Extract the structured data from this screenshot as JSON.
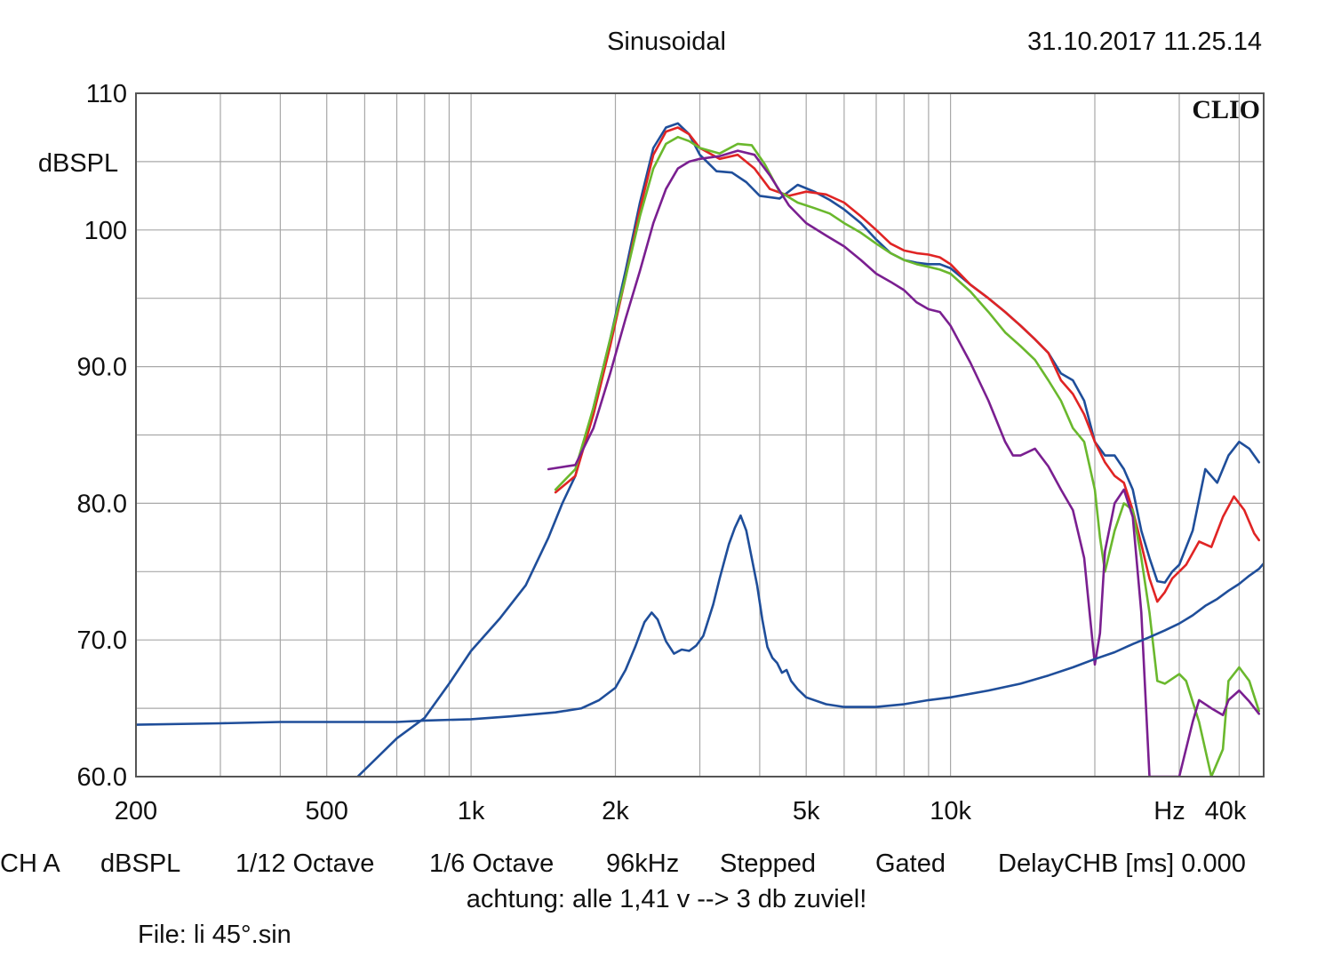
{
  "header": {
    "title": "Sinusoidal",
    "timestamp": "31.10.2017 11.25.14",
    "brand": "CLIO"
  },
  "footer": {
    "settings": [
      "CH A",
      "dBSPL",
      "1/12 Octave",
      "1/6 Octave",
      "96kHz",
      "Stepped",
      "Gated",
      "DelayCHB [ms] 0.000"
    ],
    "note": "achtung: alle 1,41 v --> 3 db zuviel!",
    "file": "File: li 45°.sin"
  },
  "colors": {
    "grid": "#a8a8a8",
    "frame": "#555555",
    "blue": "#1f4e9a",
    "red": "#e02424",
    "green": "#6ab82d",
    "purple": "#7a1f90"
  },
  "chart_data": {
    "type": "line",
    "x_scale": "log",
    "xlim": [
      200,
      45000
    ],
    "ylim": [
      60,
      110
    ],
    "ylabel": "dBSPL",
    "xunit_label": "Hz",
    "y_ticks": [
      {
        "v": 110,
        "label": "110"
      },
      {
        "v": 100,
        "label": "100"
      },
      {
        "v": 90,
        "label": "90.0"
      },
      {
        "v": 80,
        "label": "80.0"
      },
      {
        "v": 70,
        "label": "70.0"
      },
      {
        "v": 60,
        "label": "60.0"
      }
    ],
    "y_grid_step": 5,
    "x_tick_labels": [
      {
        "v": 200,
        "label": "200"
      },
      {
        "v": 500,
        "label": "500"
      },
      {
        "v": 1000,
        "label": "1k"
      },
      {
        "v": 2000,
        "label": "2k"
      },
      {
        "v": 5000,
        "label": "5k"
      },
      {
        "v": 10000,
        "label": "10k"
      },
      {
        "v": 40000,
        "label": "40k"
      }
    ],
    "x_grid": [
      200,
      300,
      400,
      500,
      600,
      700,
      800,
      900,
      1000,
      2000,
      3000,
      4000,
      5000,
      6000,
      7000,
      8000,
      9000,
      10000,
      20000,
      30000,
      40000
    ],
    "series": [
      {
        "color": "blue",
        "points": [
          [
            580,
            60
          ],
          [
            700,
            62.8
          ],
          [
            800,
            64.3
          ],
          [
            900,
            66.8
          ],
          [
            1000,
            69.2
          ],
          [
            1150,
            71.6
          ],
          [
            1300,
            74
          ],
          [
            1450,
            77.5
          ],
          [
            1550,
            80
          ],
          [
            1650,
            82
          ],
          [
            1800,
            87
          ],
          [
            1950,
            92
          ],
          [
            2100,
            97
          ],
          [
            2250,
            102
          ],
          [
            2400,
            106
          ],
          [
            2550,
            107.5
          ],
          [
            2700,
            107.8
          ],
          [
            2850,
            107
          ],
          [
            3000,
            105.5
          ],
          [
            3250,
            104.3
          ],
          [
            3500,
            104.2
          ],
          [
            3750,
            103.5
          ],
          [
            4000,
            102.5
          ],
          [
            4400,
            102.3
          ],
          [
            4800,
            103.3
          ],
          [
            5200,
            102.8
          ],
          [
            5600,
            102.2
          ],
          [
            6000,
            101.5
          ],
          [
            6500,
            100.5
          ],
          [
            7000,
            99.3
          ],
          [
            7500,
            98.3
          ],
          [
            8000,
            97.8
          ],
          [
            8500,
            97.6
          ],
          [
            9000,
            97.5
          ],
          [
            9500,
            97.5
          ],
          [
            10000,
            97.2
          ],
          [
            11000,
            96
          ],
          [
            12000,
            95
          ],
          [
            13000,
            94
          ],
          [
            14000,
            93
          ],
          [
            15000,
            92
          ],
          [
            16000,
            91
          ],
          [
            17000,
            89.5
          ],
          [
            18000,
            89
          ],
          [
            19000,
            87.5
          ],
          [
            20000,
            84.5
          ],
          [
            21000,
            83.5
          ],
          [
            22000,
            83.5
          ],
          [
            23000,
            82.5
          ],
          [
            24000,
            81
          ],
          [
            25000,
            78
          ],
          [
            26000,
            76
          ],
          [
            27000,
            74.3
          ],
          [
            28000,
            74.2
          ],
          [
            29000,
            75
          ],
          [
            30000,
            75.5
          ],
          [
            32000,
            78
          ],
          [
            34000,
            82.5
          ],
          [
            36000,
            81.5
          ],
          [
            38000,
            83.5
          ],
          [
            40000,
            84.5
          ],
          [
            42000,
            84
          ],
          [
            44000,
            83
          ]
        ]
      },
      {
        "color": "red",
        "points": [
          [
            1500,
            80.8
          ],
          [
            1650,
            82
          ],
          [
            1800,
            86.5
          ],
          [
            1950,
            91.5
          ],
          [
            2100,
            96.5
          ],
          [
            2250,
            101.5
          ],
          [
            2400,
            105.5
          ],
          [
            2550,
            107.2
          ],
          [
            2700,
            107.5
          ],
          [
            2850,
            107
          ],
          [
            3000,
            106
          ],
          [
            3300,
            105.2
          ],
          [
            3600,
            105.5
          ],
          [
            3900,
            104.5
          ],
          [
            4200,
            103
          ],
          [
            4600,
            102.5
          ],
          [
            5000,
            102.8
          ],
          [
            5500,
            102.6
          ],
          [
            6000,
            102
          ],
          [
            6500,
            101
          ],
          [
            7000,
            100
          ],
          [
            7500,
            99
          ],
          [
            8000,
            98.5
          ],
          [
            8500,
            98.3
          ],
          [
            9000,
            98.2
          ],
          [
            9500,
            98
          ],
          [
            10000,
            97.5
          ],
          [
            11000,
            96
          ],
          [
            12000,
            95
          ],
          [
            13000,
            94
          ],
          [
            14000,
            93
          ],
          [
            15000,
            92
          ],
          [
            16000,
            91
          ],
          [
            17000,
            89
          ],
          [
            18000,
            88
          ],
          [
            19000,
            86.5
          ],
          [
            20000,
            84.5
          ],
          [
            21000,
            83
          ],
          [
            22000,
            82
          ],
          [
            23000,
            81.5
          ],
          [
            24000,
            79.5
          ],
          [
            25000,
            77
          ],
          [
            26000,
            74.5
          ],
          [
            27000,
            72.8
          ],
          [
            28000,
            73.5
          ],
          [
            29000,
            74.5
          ],
          [
            31000,
            75.5
          ],
          [
            33000,
            77.2
          ],
          [
            35000,
            76.8
          ],
          [
            37000,
            79
          ],
          [
            39000,
            80.5
          ],
          [
            41000,
            79.5
          ],
          [
            43000,
            77.8
          ],
          [
            44000,
            77.3
          ]
        ]
      },
      {
        "color": "green",
        "points": [
          [
            1500,
            81
          ],
          [
            1650,
            82.5
          ],
          [
            1800,
            87
          ],
          [
            1950,
            92
          ],
          [
            2100,
            96.5
          ],
          [
            2250,
            101
          ],
          [
            2400,
            104.5
          ],
          [
            2550,
            106.3
          ],
          [
            2700,
            106.8
          ],
          [
            2850,
            106.5
          ],
          [
            3000,
            106
          ],
          [
            3300,
            105.6
          ],
          [
            3600,
            106.3
          ],
          [
            3850,
            106.2
          ],
          [
            4100,
            104.8
          ],
          [
            4400,
            102.8
          ],
          [
            4800,
            102
          ],
          [
            5200,
            101.6
          ],
          [
            5600,
            101.2
          ],
          [
            6000,
            100.5
          ],
          [
            6500,
            99.8
          ],
          [
            7000,
            99
          ],
          [
            7500,
            98.3
          ],
          [
            8000,
            97.8
          ],
          [
            8500,
            97.5
          ],
          [
            9000,
            97.3
          ],
          [
            9500,
            97.1
          ],
          [
            10000,
            96.8
          ],
          [
            11000,
            95.5
          ],
          [
            12000,
            94
          ],
          [
            13000,
            92.5
          ],
          [
            14000,
            91.5
          ],
          [
            15000,
            90.5
          ],
          [
            16000,
            89
          ],
          [
            17000,
            87.5
          ],
          [
            18000,
            85.5
          ],
          [
            19000,
            84.5
          ],
          [
            20000,
            81
          ],
          [
            20500,
            77.5
          ],
          [
            21000,
            75
          ],
          [
            22000,
            78
          ],
          [
            23000,
            80
          ],
          [
            24000,
            79.5
          ],
          [
            25000,
            76
          ],
          [
            26000,
            72
          ],
          [
            27000,
            67
          ],
          [
            28000,
            66.8
          ],
          [
            30000,
            67.5
          ],
          [
            31000,
            67
          ],
          [
            33000,
            64
          ],
          [
            35000,
            60
          ],
          [
            37000,
            62
          ],
          [
            38000,
            67
          ],
          [
            40000,
            68
          ],
          [
            42000,
            67
          ],
          [
            44000,
            64.8
          ]
        ]
      },
      {
        "color": "purple",
        "points": [
          [
            1450,
            82.5
          ],
          [
            1650,
            82.8
          ],
          [
            1800,
            85.5
          ],
          [
            1950,
            89.5
          ],
          [
            2100,
            93.5
          ],
          [
            2250,
            97
          ],
          [
            2400,
            100.5
          ],
          [
            2550,
            103
          ],
          [
            2700,
            104.5
          ],
          [
            2850,
            105
          ],
          [
            3000,
            105.2
          ],
          [
            3300,
            105.4
          ],
          [
            3600,
            105.8
          ],
          [
            3900,
            105.5
          ],
          [
            4200,
            104
          ],
          [
            4600,
            101.8
          ],
          [
            5000,
            100.5
          ],
          [
            5500,
            99.6
          ],
          [
            6000,
            98.8
          ],
          [
            6500,
            97.8
          ],
          [
            7000,
            96.8
          ],
          [
            7500,
            96.2
          ],
          [
            8000,
            95.6
          ],
          [
            8500,
            94.7
          ],
          [
            9000,
            94.2
          ],
          [
            9500,
            94
          ],
          [
            10000,
            93
          ],
          [
            11000,
            90.3
          ],
          [
            12000,
            87.5
          ],
          [
            13000,
            84.5
          ],
          [
            13500,
            83.5
          ],
          [
            14000,
            83.5
          ],
          [
            15000,
            84
          ],
          [
            16000,
            82.7
          ],
          [
            17000,
            81
          ],
          [
            18000,
            79.5
          ],
          [
            19000,
            76
          ],
          [
            19500,
            72
          ],
          [
            20000,
            68.2
          ],
          [
            20500,
            70.5
          ],
          [
            21000,
            76.5
          ],
          [
            22000,
            80
          ],
          [
            23000,
            81
          ],
          [
            24000,
            79
          ],
          [
            25000,
            72
          ],
          [
            25500,
            66
          ],
          [
            26000,
            60
          ],
          [
            30000,
            60
          ],
          [
            32000,
            64
          ],
          [
            33000,
            65.6
          ],
          [
            35000,
            65
          ],
          [
            37000,
            64.5
          ],
          [
            38000,
            65.6
          ],
          [
            40000,
            66.3
          ],
          [
            42000,
            65.5
          ],
          [
            44000,
            64.6
          ]
        ]
      },
      {
        "color": "blue",
        "points": [
          [
            200,
            63.8
          ],
          [
            300,
            63.9
          ],
          [
            400,
            64
          ],
          [
            500,
            64
          ],
          [
            600,
            64
          ],
          [
            700,
            64
          ],
          [
            800,
            64.1
          ],
          [
            1000,
            64.2
          ],
          [
            1200,
            64.4
          ],
          [
            1500,
            64.7
          ],
          [
            1700,
            65
          ],
          [
            1850,
            65.6
          ],
          [
            2000,
            66.5
          ],
          [
            2100,
            67.8
          ],
          [
            2200,
            69.5
          ],
          [
            2300,
            71.3
          ],
          [
            2380,
            72
          ],
          [
            2450,
            71.5
          ],
          [
            2550,
            69.9
          ],
          [
            2650,
            69
          ],
          [
            2750,
            69.3
          ],
          [
            2850,
            69.2
          ],
          [
            2950,
            69.6
          ],
          [
            3050,
            70.3
          ],
          [
            3200,
            72.6
          ],
          [
            3300,
            74.5
          ],
          [
            3450,
            77
          ],
          [
            3550,
            78.2
          ],
          [
            3650,
            79.1
          ],
          [
            3750,
            78
          ],
          [
            3850,
            76
          ],
          [
            3950,
            74
          ],
          [
            4050,
            71.5
          ],
          [
            4150,
            69.5
          ],
          [
            4250,
            68.7
          ],
          [
            4350,
            68.3
          ],
          [
            4450,
            67.6
          ],
          [
            4550,
            67.8
          ],
          [
            4650,
            67
          ],
          [
            4800,
            66.4
          ],
          [
            5000,
            65.8
          ],
          [
            5500,
            65.3
          ],
          [
            6000,
            65.1
          ],
          [
            7000,
            65.1
          ],
          [
            8000,
            65.3
          ],
          [
            9000,
            65.6
          ],
          [
            10000,
            65.8
          ],
          [
            12000,
            66.3
          ],
          [
            14000,
            66.8
          ],
          [
            16000,
            67.4
          ],
          [
            18000,
            68
          ],
          [
            20000,
            68.6
          ],
          [
            22000,
            69.1
          ],
          [
            24000,
            69.7
          ],
          [
            26000,
            70.2
          ],
          [
            28000,
            70.7
          ],
          [
            30000,
            71.2
          ],
          [
            32000,
            71.8
          ],
          [
            34000,
            72.5
          ],
          [
            36000,
            73
          ],
          [
            38000,
            73.6
          ],
          [
            40000,
            74.1
          ],
          [
            42000,
            74.7
          ],
          [
            44000,
            75.2
          ],
          [
            45000,
            75.6
          ]
        ]
      }
    ]
  }
}
